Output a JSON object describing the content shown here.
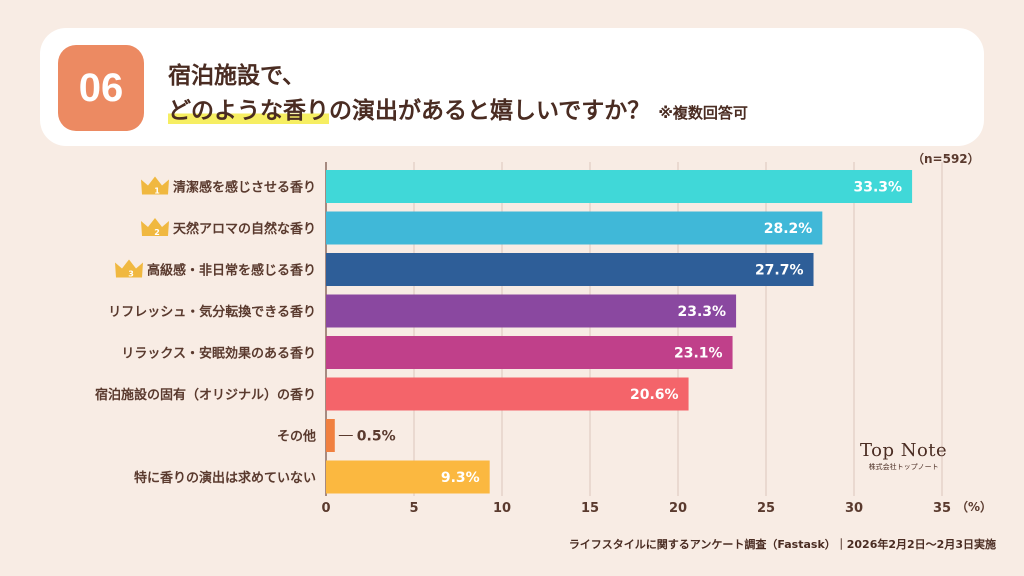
{
  "header": {
    "question_number": "06",
    "title_line1": "宿泊施設で、",
    "title_line2_highlight": "どのような香り",
    "title_line2_rest": "の演出があると嬉しいですか？",
    "title_note": "※複数回答可"
  },
  "sample_size": "（n=592）",
  "unit": "（%）",
  "brand": {
    "name": "Top Note",
    "sub": "株式会社トップノート"
  },
  "footer": "ライフスタイルに関するアンケート調査（Fastask）｜2026年2月2日〜2月3日実施",
  "chart_data": {
    "type": "bar",
    "orientation": "horizontal",
    "categories": [
      "清潔感を感じさせる香り",
      "天然アロマの自然な香り",
      "高級感・非日常を感じる香り",
      "リフレッシュ・気分転換できる香り",
      "リラックス・安眠効果のある香り",
      "宿泊施設の固有（オリジナル）の香り",
      "その他",
      "特に香りの演出は求めていない"
    ],
    "values": [
      33.3,
      28.2,
      27.7,
      23.3,
      23.1,
      20.6,
      0.5,
      9.3
    ],
    "value_labels": [
      "33.3%",
      "28.2%",
      "27.7%",
      "23.3%",
      "23.1%",
      "20.6%",
      "0.5%",
      "9.3%"
    ],
    "colors": [
      "#40d8d8",
      "#40b8d8",
      "#2e5e98",
      "#8a48a0",
      "#c0408a",
      "#f4646a",
      "#f08040",
      "#fbb840"
    ],
    "rank_badges": [
      "1",
      "2",
      "3"
    ],
    "crown_color": "#f0b840",
    "xlim": [
      0,
      35
    ],
    "xticks": [
      0,
      5,
      10,
      15,
      20,
      25,
      30,
      35
    ],
    "xtick_labels": [
      "0",
      "5",
      "10",
      "15",
      "20",
      "25",
      "30",
      "35"
    ],
    "grid": true,
    "title": "",
    "xlabel": "",
    "ylabel": ""
  }
}
